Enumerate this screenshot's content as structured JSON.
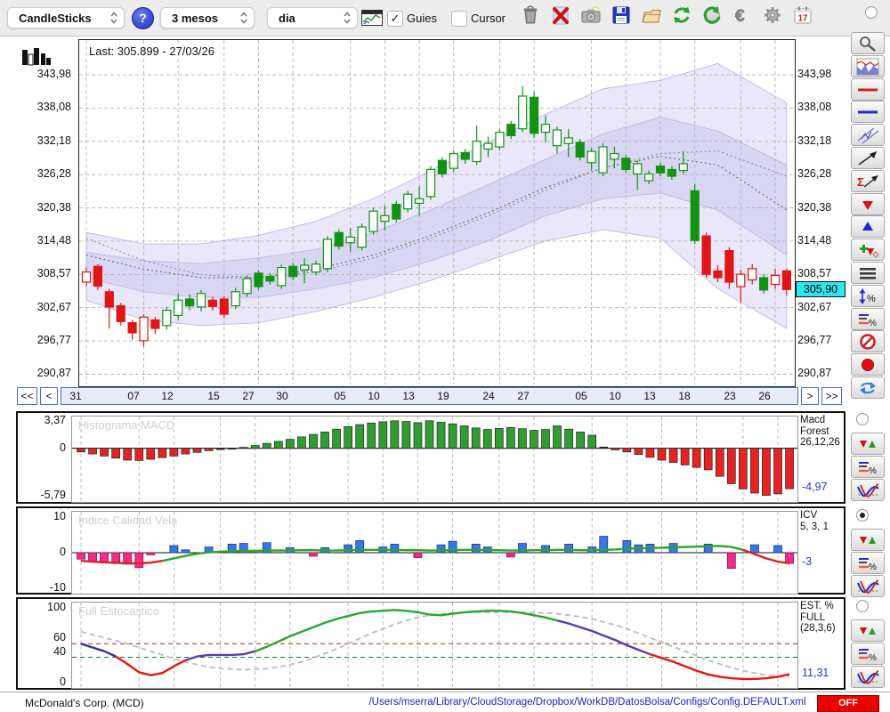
{
  "toolbar": {
    "chart_type_select": {
      "value": "CandleSticks"
    },
    "help_label": "?",
    "period_select": {
      "value": "3 mesos"
    },
    "interval_select": {
      "value": "dia"
    },
    "guides_checkbox": {
      "label": "Guies",
      "checked": true
    },
    "cursor_checkbox": {
      "label": "Cursor",
      "checked": false
    },
    "icons": [
      "trash-icon",
      "delete-x-icon",
      "snapshot-icon",
      "save-icon",
      "open-folder-icon",
      "refresh-icon",
      "revert-icon",
      "currency-euro-icon",
      "settings-gear-icon",
      "calendar-icon"
    ],
    "calendar_day": "17"
  },
  "navigation": {
    "far_left": "<<",
    "left": "<",
    "right": ">",
    "far_right": ">>"
  },
  "sidebar": {
    "tools": [
      "zoom-icon",
      "price-chart-icon",
      "red-hline-icon",
      "blue-hline-icon",
      "channel-icon",
      "trendline-icon",
      "sigma-trend-icon",
      "arrow-down-red-icon",
      "arrow-up-blue-icon",
      "add-signal-icon",
      "rows-icon",
      "measure-percent-icon",
      "lines-percent-icon",
      "forbid-icon",
      "record-icon",
      "swap-icon"
    ],
    "top_radio_selected": false,
    "panel_controls": [
      {
        "panel": "macd",
        "radio_selected": false,
        "buttons": [
          "updown-icon",
          "lines-percent-icon",
          "curves-icon"
        ]
      },
      {
        "panel": "icv",
        "radio_selected": true,
        "buttons": [
          "updown-icon",
          "lines-percent-icon",
          "curves-icon"
        ]
      },
      {
        "panel": "stoch",
        "radio_selected": false,
        "buttons": [
          "updown-icon",
          "lines-percent-icon",
          "curves-icon"
        ]
      }
    ]
  },
  "statusbar": {
    "symbol": "McDonald's Corp. (MCD)",
    "config_path": "/Users/mserra/Library/CloudStorage/Dropbox/WorkDB/DatosBolsa/Configs/Config.DEFAULT.xml",
    "off_label": "OFF"
  },
  "colors": {
    "candle_green": "#139313",
    "candle_red": "#e01515",
    "band_outer": "#e9e7f9",
    "band_inner": "#d9d6f3",
    "band_edge": "#b7b3e6",
    "ma_dash": "#666666",
    "grid": "#b5b5b5",
    "macd_green": "#2f9e2f",
    "macd_red": "#e62222",
    "icv_blue": "#3b76e8",
    "icv_magenta": "#ef2d88",
    "line_red": "#dd2222",
    "line_green": "#28a828",
    "stoch_blue": "#333399",
    "stoch_purple": "#5b3bb0",
    "stoch_gray": "#c0c0c0",
    "thresh_red": "#cc3333",
    "thresh_green": "#227722",
    "value_blue": "#2233dd",
    "marker_cyan": "#2ee8ee"
  },
  "chart_data": [
    {
      "type": "candlestick",
      "id": "price",
      "last_label": "Last: 305.899 - 27/03/26",
      "price_marker_label": "305,90",
      "price_marker_value": 305.9,
      "y_range": [
        289.05,
        350.15
      ],
      "y_ticks": [
        {
          "label": "343,98",
          "value": 343.98
        },
        {
          "label": "338,08",
          "value": 338.08
        },
        {
          "label": "332,18",
          "value": 332.18
        },
        {
          "label": "326,28",
          "value": 326.28
        },
        {
          "label": "320,38",
          "value": 320.38
        },
        {
          "label": "314,48",
          "value": 314.48
        },
        {
          "label": "308,57",
          "value": 308.57
        },
        {
          "label": "302,67",
          "value": 302.67
        },
        {
          "label": "296,77",
          "value": 296.77
        },
        {
          "label": "290,87",
          "value": 290.87
        }
      ],
      "x_labels": [
        {
          "label": "31",
          "bar": 0
        },
        {
          "label": "07",
          "bar": 5
        },
        {
          "label": "12",
          "bar": 8
        },
        {
          "label": "15",
          "bar": 12
        },
        {
          "label": "27",
          "bar": 15
        },
        {
          "label": "30",
          "bar": 18
        },
        {
          "label": "05",
          "bar": 23
        },
        {
          "label": "10",
          "bar": 26
        },
        {
          "label": "13",
          "bar": 29
        },
        {
          "label": "19",
          "bar": 32
        },
        {
          "label": "24",
          "bar": 36
        },
        {
          "label": "27",
          "bar": 39
        },
        {
          "label": "05",
          "bar": 44
        },
        {
          "label": "10",
          "bar": 47
        },
        {
          "label": "13",
          "bar": 50
        },
        {
          "label": "18",
          "bar": 53
        },
        {
          "label": "23",
          "bar": 57
        },
        {
          "label": "26",
          "bar": 60
        }
      ],
      "candle_format": "[open,high,low,close,style] style: gs=green solid, gh=green hollow, rs=red solid, rh=red hollow",
      "candles": [
        [
          307.2,
          309.8,
          306.5,
          309.0,
          "rh"
        ],
        [
          310.0,
          310.4,
          305.8,
          306.5,
          "rs"
        ],
        [
          305.5,
          306.0,
          299.0,
          302.8,
          "rs"
        ],
        [
          303.0,
          303.5,
          299.5,
          300.2,
          "rs"
        ],
        [
          300.0,
          300.5,
          297.0,
          298.2,
          "rs"
        ],
        [
          296.8,
          301.5,
          295.8,
          301.0,
          "rh"
        ],
        [
          300.5,
          301.0,
          298.0,
          299.0,
          "rs"
        ],
        [
          299.5,
          302.8,
          298.8,
          302.2,
          "gh"
        ],
        [
          301.3,
          305.2,
          300.5,
          304.0,
          "gh"
        ],
        [
          304.2,
          305.0,
          302.2,
          303.0,
          "gs"
        ],
        [
          302.8,
          305.8,
          302.0,
          305.2,
          "gh"
        ],
        [
          304.0,
          304.6,
          302.2,
          302.9,
          "rs"
        ],
        [
          304.2,
          304.6,
          300.8,
          301.5,
          "rs"
        ],
        [
          303.0,
          306.2,
          302.4,
          305.5,
          "gh"
        ],
        [
          305.2,
          308.4,
          304.6,
          307.8,
          "gh"
        ],
        [
          308.8,
          309.3,
          305.8,
          306.4,
          "gs"
        ],
        [
          308.2,
          308.8,
          306.8,
          307.4,
          "gs"
        ],
        [
          306.6,
          310.4,
          306.0,
          309.8,
          "gh"
        ],
        [
          310.0,
          310.6,
          307.6,
          308.2,
          "gs"
        ],
        [
          309.4,
          311.4,
          307.0,
          310.2,
          "gh"
        ],
        [
          309.0,
          311.0,
          308.4,
          310.4,
          "gh"
        ],
        [
          309.6,
          315.4,
          309.0,
          314.8,
          "gh"
        ],
        [
          316.0,
          316.6,
          313.0,
          313.6,
          "gs"
        ],
        [
          314.2,
          316.8,
          312.6,
          315.2,
          "gh"
        ],
        [
          313.4,
          317.6,
          312.8,
          317.0,
          "gh"
        ],
        [
          316.2,
          320.4,
          315.6,
          319.8,
          "gh"
        ],
        [
          318.0,
          320.8,
          316.4,
          319.0,
          "gh"
        ],
        [
          321.0,
          321.6,
          317.8,
          318.4,
          "gs"
        ],
        [
          320.2,
          323.4,
          319.6,
          322.8,
          "gh"
        ],
        [
          321.2,
          324.2,
          319.0,
          322.0,
          "gh"
        ],
        [
          322.4,
          327.8,
          321.8,
          327.2,
          "gh"
        ],
        [
          328.8,
          329.4,
          325.8,
          326.4,
          "gs"
        ],
        [
          327.4,
          330.6,
          326.8,
          330.0,
          "gh"
        ],
        [
          330.2,
          330.8,
          328.2,
          329.0,
          "gs"
        ],
        [
          328.6,
          335.0,
          328.0,
          332.2,
          "gh"
        ],
        [
          330.8,
          333.0,
          329.4,
          331.8,
          "gh"
        ],
        [
          331.2,
          334.4,
          330.6,
          333.8,
          "gh"
        ],
        [
          335.2,
          335.8,
          332.6,
          333.2,
          "gs"
        ],
        [
          334.4,
          342.0,
          333.8,
          340.2,
          "gh"
        ],
        [
          340.0,
          341.0,
          332.8,
          333.6,
          "gs"
        ],
        [
          333.8,
          336.8,
          332.0,
          335.2,
          "gh"
        ],
        [
          331.4,
          334.8,
          330.0,
          334.2,
          "gh"
        ],
        [
          331.8,
          334.4,
          329.4,
          332.8,
          "gh"
        ],
        [
          332.0,
          332.6,
          328.8,
          329.4,
          "gs"
        ],
        [
          328.4,
          331.0,
          327.0,
          330.4,
          "gh"
        ],
        [
          326.6,
          331.8,
          326.0,
          331.2,
          "gh"
        ],
        [
          329.0,
          331.2,
          327.4,
          330.0,
          "gh"
        ],
        [
          329.2,
          329.8,
          326.6,
          327.2,
          "gs"
        ],
        [
          326.4,
          328.8,
          323.6,
          328.2,
          "gh"
        ],
        [
          325.2,
          327.0,
          324.6,
          326.4,
          "gh"
        ],
        [
          327.8,
          328.4,
          326.0,
          326.6,
          "gs"
        ],
        [
          327.2,
          327.8,
          325.4,
          326.0,
          "gs"
        ],
        [
          327.0,
          330.4,
          326.4,
          328.2,
          "gh"
        ],
        [
          323.4,
          324.6,
          314.0,
          314.6,
          "gs"
        ],
        [
          315.4,
          316.0,
          308.0,
          308.6,
          "rs"
        ],
        [
          309.2,
          310.2,
          307.2,
          308.0,
          "rs"
        ],
        [
          312.8,
          313.4,
          306.0,
          307.2,
          "rs"
        ],
        [
          306.4,
          309.4,
          303.6,
          308.6,
          "rh"
        ],
        [
          307.6,
          310.4,
          306.8,
          309.6,
          "rh"
        ],
        [
          308.0,
          308.6,
          305.2,
          305.8,
          "gs"
        ],
        [
          306.8,
          309.6,
          306.0,
          308.4,
          "rh"
        ],
        [
          309.2,
          309.6,
          304.8,
          305.9,
          "rs"
        ]
      ],
      "bands": {
        "indices": [
          0,
          5,
          10,
          15,
          20,
          25,
          30,
          35,
          40,
          45,
          50,
          55,
          61
        ],
        "outer_upper": [
          316,
          314,
          314,
          315.5,
          318,
          322,
          327,
          332,
          337,
          341.5,
          343,
          346,
          339
        ],
        "inner_upper": [
          312.5,
          311,
          310.5,
          311.5,
          313,
          316,
          320,
          324.5,
          329,
          333.5,
          336.5,
          334,
          328
        ],
        "ma": [
          312,
          309.5,
          308,
          308,
          309.5,
          312,
          315.5,
          319.5,
          324,
          327.5,
          329.5,
          328,
          320
        ],
        "ma2": [
          315,
          311,
          308.5,
          308,
          309,
          311.5,
          315,
          319,
          323.5,
          327.5,
          330,
          330.5,
          326
        ],
        "inner_lower": [
          308,
          305.5,
          304.5,
          304.5,
          306,
          308,
          311,
          314.5,
          319,
          322,
          323,
          320,
          312
        ],
        "outer_lower": [
          304,
          300.5,
          299.5,
          300,
          302,
          304.5,
          307.5,
          311,
          314.5,
          316.5,
          315,
          306,
          299
        ]
      }
    },
    {
      "type": "bar",
      "id": "macd",
      "title": "Histograma MACD",
      "right_label_lines": [
        "Macd",
        "Forest",
        "26,12,26"
      ],
      "current_value_label": "-4,97",
      "current_value": -4.97,
      "vlim": [
        3.9,
        -6.6
      ],
      "y_ticks": [
        {
          "label": "3,37",
          "value": 3.37
        },
        {
          "label": "0",
          "value": 0
        },
        {
          "label": "-5,79",
          "value": -5.79
        }
      ],
      "values": [
        -0.45,
        -0.7,
        -0.95,
        -1.2,
        -1.45,
        -1.5,
        -1.35,
        -1.15,
        -0.95,
        -0.7,
        -0.5,
        -0.3,
        -0.15,
        -0.05,
        0.1,
        0.35,
        0.6,
        0.85,
        1.1,
        1.4,
        1.7,
        2.0,
        2.35,
        2.65,
        2.9,
        3.1,
        3.25,
        3.37,
        3.3,
        3.15,
        3.37,
        3.2,
        3.0,
        2.75,
        2.5,
        2.3,
        2.45,
        2.55,
        2.4,
        2.2,
        2.3,
        2.75,
        2.35,
        2.0,
        1.6,
        0.15,
        -0.2,
        -0.45,
        -0.75,
        -1.1,
        -1.45,
        -1.75,
        -2.05,
        -2.35,
        -2.65,
        -3.45,
        -4.35,
        -5.0,
        -5.5,
        -5.79,
        -5.6,
        -4.97
      ]
    },
    {
      "type": "bar+line",
      "id": "icv",
      "title": "Indice Calidad Vela",
      "right_label_lines": [
        "ICV",
        "5, 3, 1"
      ],
      "current_value_label": "-3",
      "current_value": -3,
      "vlim": [
        11.5,
        -11.5
      ],
      "y_ticks": [
        {
          "label": "10",
          "value": 10
        },
        {
          "label": "0",
          "value": 0
        },
        {
          "label": "-10",
          "value": -10
        }
      ],
      "values": [
        -1.8,
        -2.6,
        -2.9,
        -2.6,
        -3.2,
        -4.2,
        -0.6,
        0,
        2.0,
        0.8,
        0,
        1.6,
        0,
        2.4,
        2.6,
        0,
        2.8,
        0,
        1.4,
        0,
        -1.0,
        1.4,
        0,
        2.2,
        3.4,
        0,
        1.6,
        2.4,
        0,
        -1.4,
        0,
        2.2,
        3.2,
        0,
        2.4,
        1.6,
        0,
        -1.2,
        2.6,
        0,
        2.0,
        0,
        2.4,
        0,
        1.6,
        4.6,
        0,
        3.4,
        2.2,
        2.4,
        0,
        2.6,
        0,
        0,
        2.4,
        0,
        -4.4,
        0,
        2.2,
        0,
        2.0,
        -3.0
      ],
      "line": [
        -2.3,
        -2.5,
        -2.7,
        -2.9,
        -3.0,
        -3.0,
        -2.8,
        -2.3,
        -1.6,
        -0.9,
        -0.3,
        0.1,
        0.3,
        0.4,
        0.5,
        0.5,
        0.6,
        0.6,
        0.6,
        0.7,
        0.7,
        0.6,
        0.6,
        0.7,
        0.8,
        0.8,
        0.8,
        0.8,
        0.7,
        0.7,
        0.6,
        0.6,
        0.7,
        0.8,
        0.8,
        0.7,
        0.7,
        0.6,
        0.6,
        0.7,
        0.7,
        0.8,
        0.8,
        0.7,
        0.7,
        0.8,
        0.9,
        1.1,
        1.2,
        1.3,
        1.4,
        1.5,
        1.6,
        1.7,
        1.8,
        1.9,
        1.6,
        0.8,
        -0.4,
        -1.6,
        -2.5,
        -3.0
      ],
      "line_segments": [
        {
          "start": 0,
          "end": 7,
          "color": "#dd2222"
        },
        {
          "start": 7,
          "end": 57,
          "color": "#28a828"
        },
        {
          "start": 57,
          "end": 61,
          "color": "#dd2222"
        }
      ]
    },
    {
      "type": "line",
      "id": "stoch",
      "title": "Full Estocastico",
      "right_label_lines": [
        "EST. %",
        "FULL",
        "(28,3,6)"
      ],
      "current_value_label": "11,31",
      "current_value": 11.31,
      "vlim": [
        107,
        -7
      ],
      "y_ticks": [
        {
          "label": "100",
          "value": 100
        },
        {
          "label": "60",
          "value": 60
        },
        {
          "label": "40",
          "value": 40
        },
        {
          "label": "0",
          "value": 0
        }
      ],
      "thresholds": [
        {
          "value": 52,
          "color": "#cc3333"
        },
        {
          "value": 34,
          "color": "#227722"
        }
      ],
      "k_values": [
        52,
        47,
        42,
        35,
        25,
        14,
        10,
        13,
        22,
        30,
        35,
        37,
        37,
        37,
        38,
        42,
        48,
        55,
        62,
        68,
        74,
        80,
        85,
        89,
        93,
        95,
        96,
        97,
        96,
        94,
        91,
        90,
        92,
        94,
        95,
        96,
        96,
        95,
        93,
        90,
        87,
        83,
        79,
        74,
        69,
        63,
        57,
        50,
        44,
        38,
        33,
        28,
        22,
        16,
        11,
        8,
        6,
        5,
        5,
        6,
        8,
        11.31
      ],
      "k_segments": [
        {
          "start": 0,
          "end": 3,
          "color": "#333399"
        },
        {
          "start": 3,
          "end": 9,
          "color": "#ee1111"
        },
        {
          "start": 9,
          "end": 15,
          "color": "#5b3bb0"
        },
        {
          "start": 15,
          "end": 41,
          "color": "#28a828"
        },
        {
          "start": 41,
          "end": 49,
          "color": "#5b3bb0"
        },
        {
          "start": 49,
          "end": 61,
          "color": "#ee1111"
        }
      ],
      "d_values": [
        68,
        64,
        60,
        56,
        52,
        47,
        42,
        37,
        32,
        28,
        24,
        21,
        19,
        18,
        17.5,
        18,
        19,
        21,
        24,
        28,
        33,
        39,
        45,
        52,
        59,
        66,
        72,
        78,
        83,
        87,
        90,
        92,
        93,
        94,
        94,
        94,
        94,
        94,
        94,
        93,
        93,
        92,
        90,
        88,
        85,
        81,
        77,
        72,
        66,
        60,
        54,
        48,
        42,
        36,
        30,
        25,
        20,
        16,
        13,
        10,
        9,
        8
      ]
    }
  ]
}
